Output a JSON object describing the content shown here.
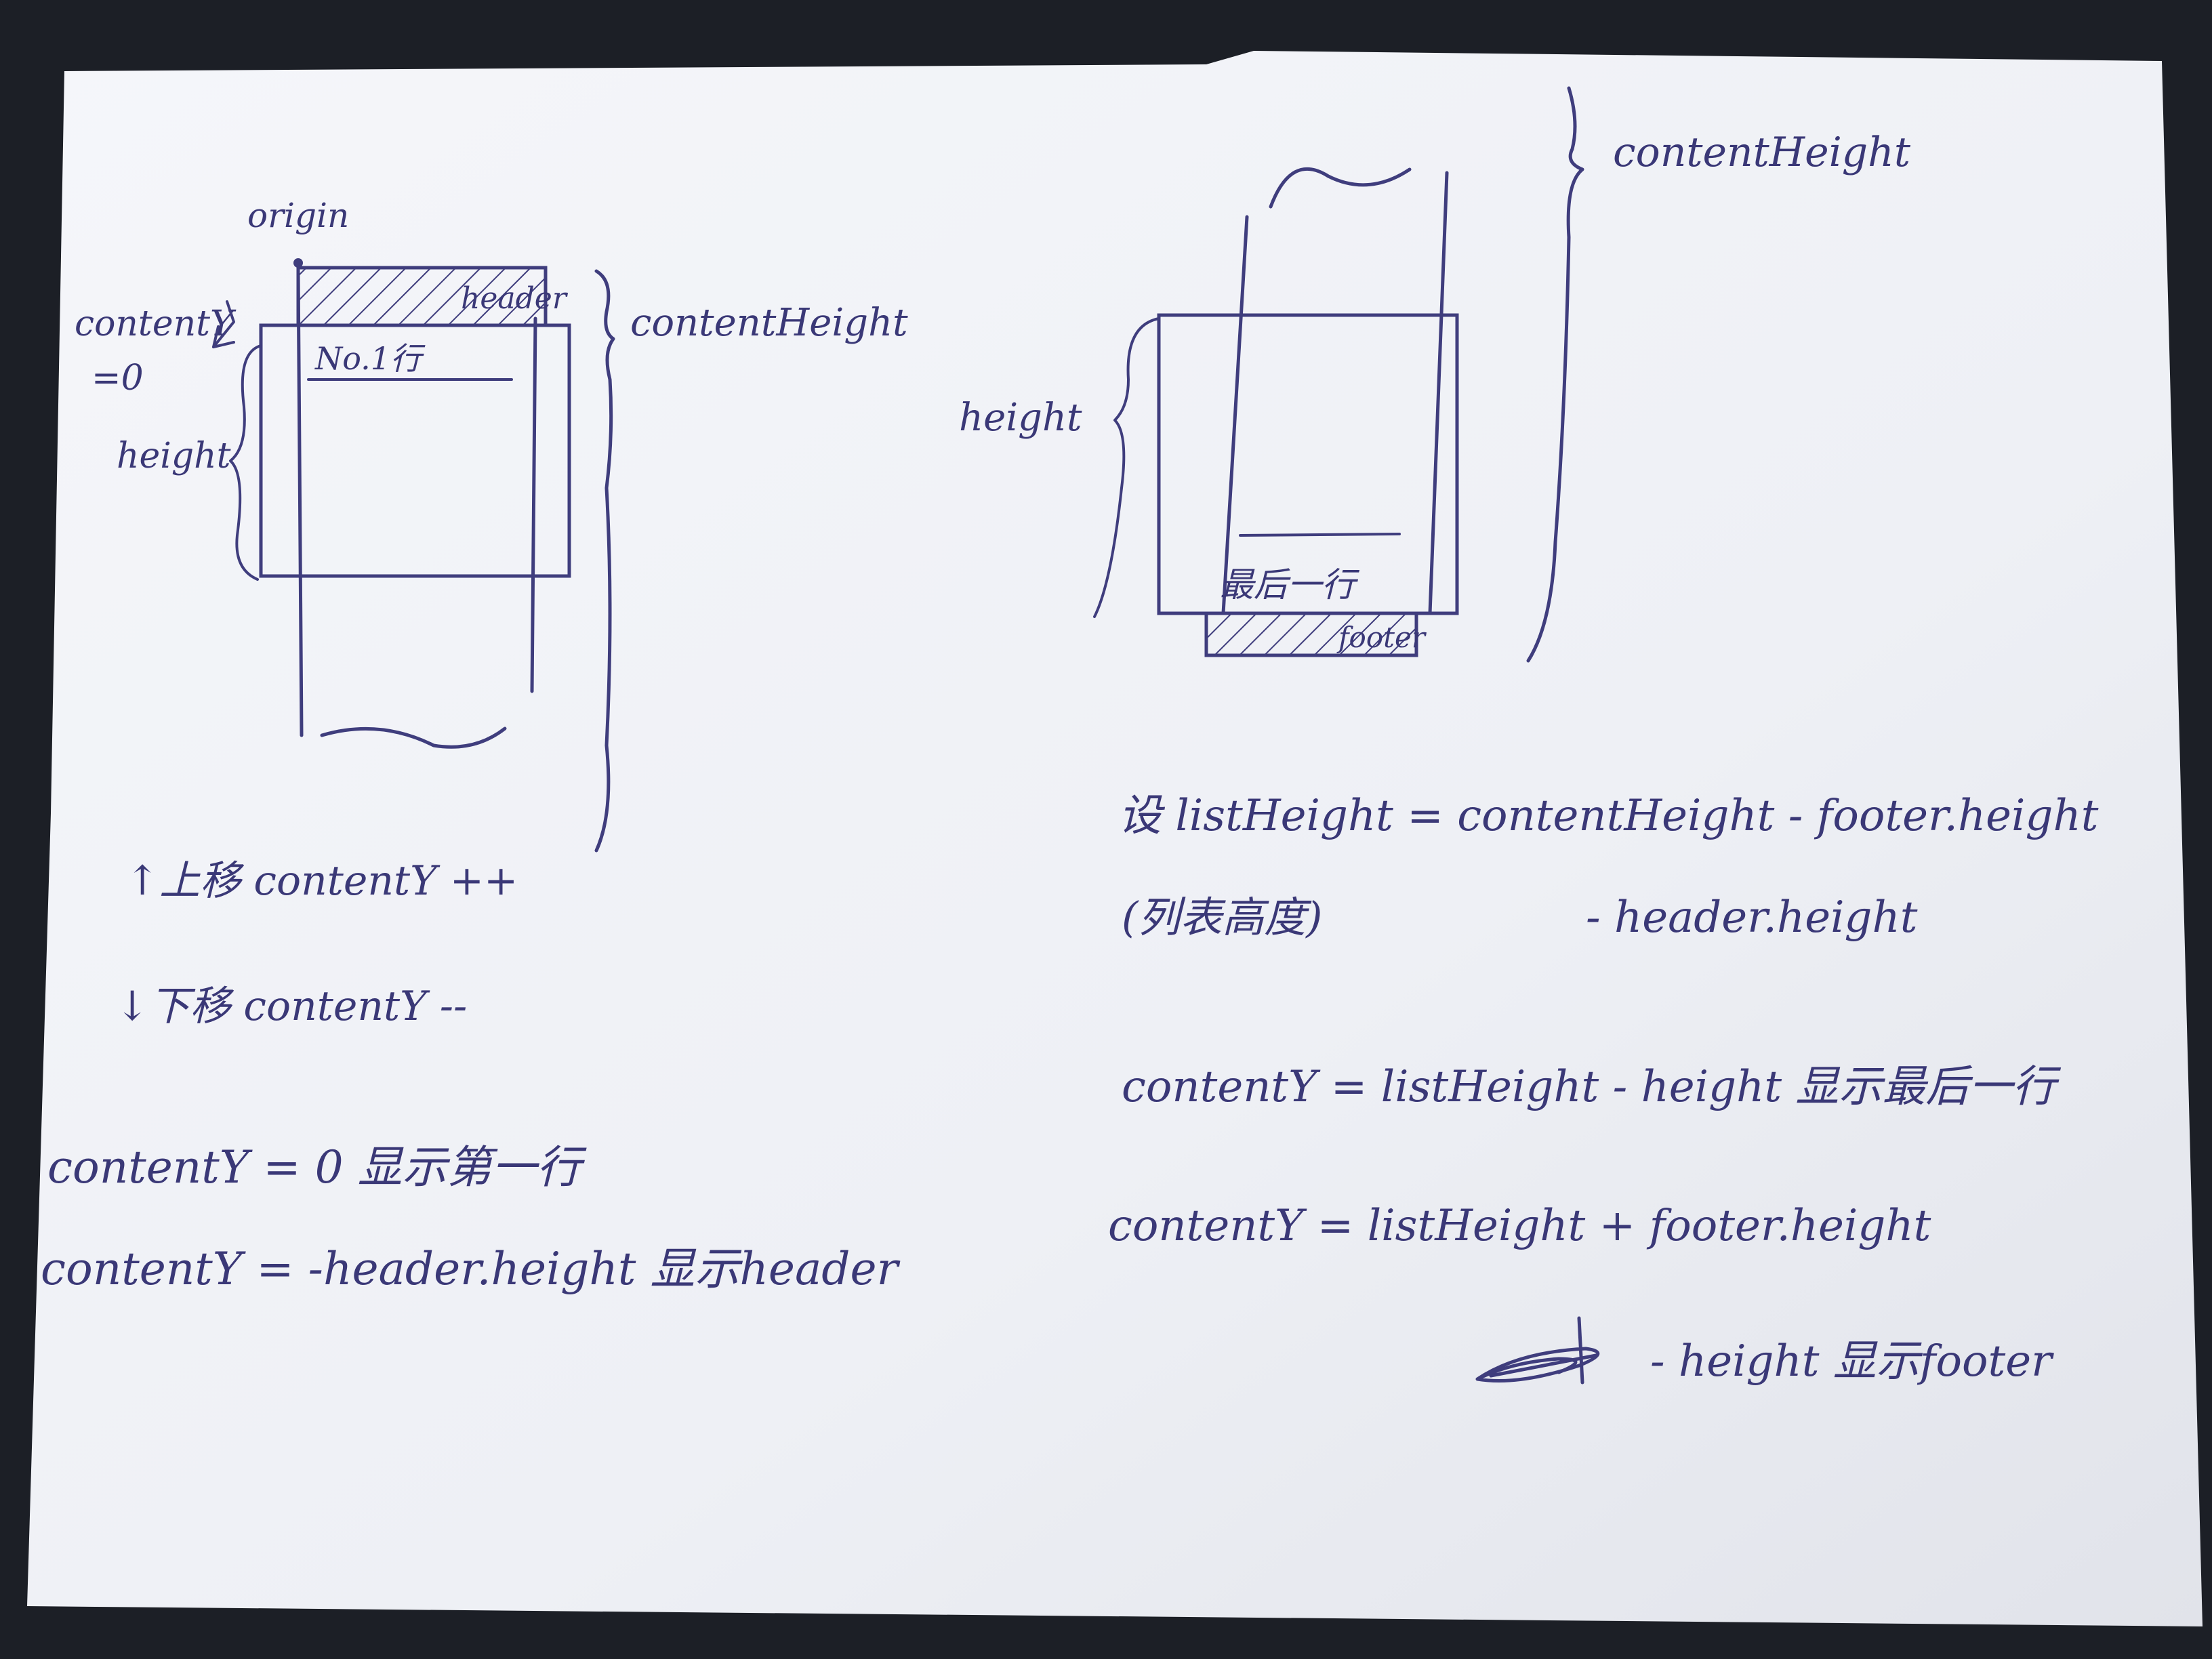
{
  "left_diagram": {
    "origin_label": "origin",
    "header_label": "header",
    "content_y_label": "contentY",
    "content_y_zero": "=0",
    "row_label": "No.1行",
    "height_label": "height",
    "content_height_label": "contentHeight",
    "move_up": "↑上移  contentY ++",
    "move_down": "↓下移  contentY --"
  },
  "right_diagram": {
    "content_height_label": "contentHeight",
    "height_label": "height",
    "last_row_label": "最后一行",
    "footer_label": "footer"
  },
  "left_formulas": [
    "contentY = 0   显示第一行",
    "contentY = -header.height  显示header"
  ],
  "right_formulas": {
    "list_height_line1": "设 listHeight = contentHeight - footer.height",
    "list_height_note": "(列表高度)",
    "list_height_line2": "- header.height",
    "last_row_formula": "contentY =  listHeight - height  显示最后一行",
    "footer_formula_line1": "contentY = listHeight + footer.height",
    "footer_formula_line2": "- height   显示footer"
  },
  "colors": {
    "paper": "#f2f3f7",
    "ink": "#3f3d7d",
    "background": "#1c1f26"
  }
}
